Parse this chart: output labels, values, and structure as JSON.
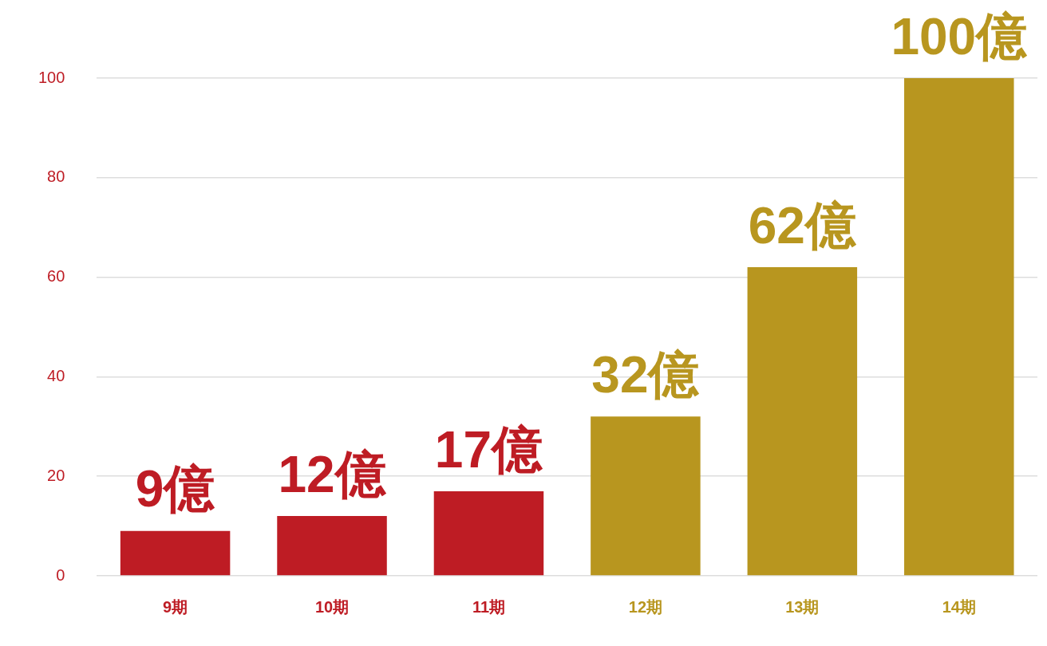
{
  "chart_data": {
    "type": "bar",
    "categories": [
      "9期",
      "10期",
      "11期",
      "12期",
      "13期",
      "14期"
    ],
    "values": [
      9,
      12,
      17,
      32,
      62,
      100
    ],
    "colors": [
      "#be1c24",
      "#be1c24",
      "#be1c24",
      "#b8961f",
      "#b8961f",
      "#b8961f"
    ],
    "value_labels": [
      "9億",
      "12億",
      "17億",
      "32億",
      "62億",
      "100億"
    ],
    "ylim": [
      0,
      100
    ],
    "yticks": [
      0,
      20,
      40,
      60,
      80,
      100
    ],
    "grid": "y",
    "legend": false
  }
}
